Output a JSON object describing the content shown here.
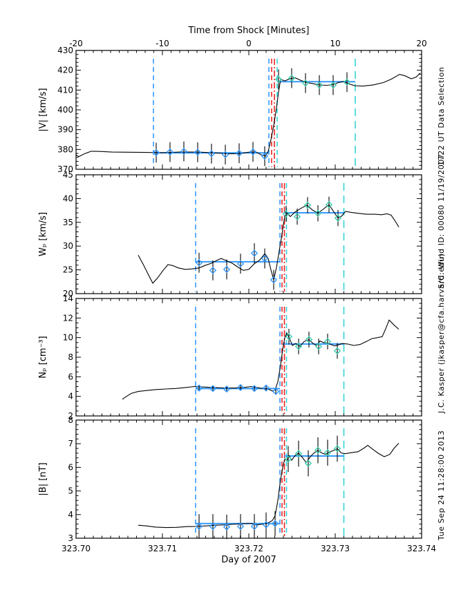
{
  "figure": {
    "bg": "#ffffff"
  },
  "colors": {
    "frame": "#000000",
    "data_line": "#000000",
    "blue": "#3399ff",
    "red": "#ee2222",
    "cyan": "#35d2d2",
    "teal_marker": "#3bcfb0",
    "fit_line": "#3399ff"
  },
  "top_axis": {
    "title": "Time from Shock [Minutes]",
    "tick_labels": [
      "-20",
      "-10",
      "0",
      "10",
      "20"
    ]
  },
  "x_axis": {
    "title": "Day of 2007",
    "tick_labels": [
      "323.70",
      "323.71",
      "323.72",
      "323.73",
      "323.74"
    ],
    "range": [
      323.7,
      323.74
    ]
  },
  "right_margin_texts": [
    "Tue Sep 24 11:28:00 2013",
    "J.C. Kasper (jkasper@cfa.harvard.edu)",
    "S/C: Wind ID: 00080 11/19/2007",
    "1722 UT Data Selection"
  ],
  "chart_data": [
    {
      "id": "vmag",
      "type": "line",
      "ylabel": "|V| [km/s]",
      "ylim": [
        370,
        430
      ],
      "ymajor": 10,
      "yminor": 2,
      "line_x": [
        323.7,
        323.70032,
        323.70096,
        323.70176,
        323.7028,
        323.70416,
        323.706,
        323.708,
        323.71,
        323.712,
        323.714,
        323.716,
        323.7176,
        323.7188,
        323.72,
        323.7208,
        323.72144,
        323.72192,
        323.72224,
        323.72256,
        323.72288,
        323.7232,
        323.72344,
        323.72368,
        323.72416,
        323.7248,
        323.72536,
        323.726,
        323.72664,
        323.72736,
        323.72816,
        323.72896,
        323.72976,
        323.7304,
        323.73096,
        323.7316,
        323.73224,
        323.7332,
        323.7344,
        323.7356,
        323.73648,
        323.73744,
        323.73808,
        323.7388,
        323.73936,
        323.73984
      ],
      "line_y": [
        377.2,
        376.4,
        377.8,
        379.1,
        379.0,
        378.7,
        378.6,
        378.5,
        378.4,
        378.7,
        378.7,
        378.3,
        377.8,
        377.9,
        378.6,
        378.8,
        377.3,
        376.6,
        379.0,
        385.0,
        392.0,
        401.0,
        409.0,
        415.4,
        414.6,
        415.8,
        416.2,
        414.9,
        413.8,
        413.3,
        412.6,
        412.4,
        412.7,
        413.8,
        414.3,
        413.1,
        412.2,
        412.0,
        412.6,
        413.8,
        415.5,
        417.9,
        417.2,
        415.7,
        416.5,
        418.6
      ],
      "upstream": {
        "x": [
          323.70928,
          323.71088,
          323.71248,
          323.71408,
          323.71568,
          323.71728,
          323.71888,
          323.72048,
          323.72184
        ],
        "y": [
          378.4,
          378.7,
          379.0,
          378.6,
          377.9,
          377.4,
          378.1,
          378.8,
          376.6
        ],
        "yerr": 5,
        "fit_y": 378.3,
        "fit_x": [
          323.70896,
          323.72232
        ]
      },
      "downstream": {
        "x": [
          323.72344,
          323.72496,
          323.72656,
          323.72816,
          323.72976,
          323.73136
        ],
        "y": [
          415.4,
          416.0,
          413.5,
          412.5,
          412.5,
          414.0
        ],
        "yerr": 5,
        "fit_y": 414.2,
        "fit_x": [
          323.72328,
          323.73232
        ]
      },
      "vlines": [
        [
          323.70896,
          "blue",
          "dash"
        ],
        [
          323.72232,
          "blue",
          "dash"
        ],
        [
          323.72264,
          "red",
          "dash"
        ],
        [
          323.72296,
          "red",
          "dashdot"
        ],
        [
          323.72328,
          "cyan",
          "dash"
        ],
        [
          323.73232,
          "cyan",
          "longdash"
        ]
      ]
    },
    {
      "id": "wp",
      "type": "line",
      "ylabel": "Wₚ [km/s]",
      "ylim": [
        20,
        45
      ],
      "ymajor": 5,
      "yminor": 1,
      "line_x": [
        323.7072,
        323.70776,
        323.70832,
        323.70888,
        323.70944,
        323.71008,
        323.71064,
        323.7112,
        323.71184,
        323.71264,
        323.71344,
        323.71424,
        323.71504,
        323.71568,
        323.71632,
        323.7168,
        323.71744,
        323.71808,
        323.71872,
        323.71936,
        323.72,
        323.72064,
        323.72128,
        323.72184,
        323.72224,
        323.72256,
        323.72288,
        323.7232,
        323.72352,
        323.72384,
        323.72416,
        323.72448,
        323.7248,
        323.72536,
        323.72608,
        323.72672,
        323.72736,
        323.728,
        323.72864,
        323.72928,
        323.72984,
        323.73032,
        323.73072,
        323.7312,
        323.73184,
        323.73264,
        323.7336,
        323.73456,
        323.73536,
        323.736,
        323.73648,
        323.73696,
        323.73736
      ],
      "line_y": [
        28.1,
        26.2,
        24.2,
        22.2,
        23.3,
        24.9,
        26.1,
        25.9,
        25.4,
        25.1,
        25.2,
        25.4,
        26.0,
        26.4,
        27.0,
        27.4,
        26.9,
        26.4,
        25.6,
        24.9,
        25.1,
        26.3,
        27.1,
        28.4,
        27.4,
        25.0,
        22.9,
        25.5,
        29.0,
        32.5,
        36.3,
        36.9,
        36.2,
        37.2,
        38.0,
        38.6,
        37.6,
        36.9,
        37.8,
        38.7,
        37.2,
        35.9,
        36.3,
        37.3,
        37.1,
        36.9,
        36.7,
        36.7,
        36.6,
        36.8,
        36.5,
        35.2,
        34.0
      ],
      "upstream": {
        "x": [
          323.71424,
          323.71584,
          323.71744,
          323.71904,
          323.72064,
          323.72184,
          323.72288
        ],
        "y": [
          26.5,
          24.9,
          25.1,
          26.3,
          28.5,
          27.4,
          22.9
        ],
        "yerr": 2.1,
        "fit_y": 26.7,
        "fit_x": [
          323.71384,
          323.7236
        ]
      },
      "downstream": {
        "x": [
          323.72432,
          323.7256,
          323.7268,
          323.728,
          323.72928,
          323.73032
        ],
        "y": [
          36.8,
          36.2,
          38.6,
          36.9,
          38.7,
          35.9
        ],
        "yerr": 1.7,
        "fit_y": 37.0,
        "fit_x": [
          323.724,
          323.731
        ]
      },
      "vlines": [
        [
          323.71384,
          "blue",
          "dash"
        ],
        [
          323.7236,
          "blue",
          "dash"
        ],
        [
          323.72384,
          "red",
          "dash"
        ],
        [
          323.72412,
          "red",
          "dashdot"
        ],
        [
          323.72436,
          "cyan",
          "dash"
        ],
        [
          323.731,
          "cyan",
          "longdash"
        ]
      ]
    },
    {
      "id": "np",
      "type": "line",
      "ylabel": "Nₚ [cm⁻³]",
      "ylim": [
        2,
        14
      ],
      "ymajor": 2,
      "yminor": 0.5,
      "line_x": [
        323.70536,
        323.70584,
        323.7064,
        323.7072,
        323.70816,
        323.70928,
        323.7104,
        323.71152,
        323.71264,
        323.71368,
        323.7148,
        323.716,
        323.7172,
        323.7184,
        323.71936,
        323.72024,
        323.72096,
        323.7216,
        323.72224,
        323.72272,
        323.72304,
        323.72336,
        323.72368,
        323.72392,
        323.72416,
        323.7244,
        323.72472,
        323.72504,
        323.72544,
        323.72592,
        323.7264,
        323.72696,
        323.72744,
        323.72784,
        323.72824,
        323.72864,
        323.72904,
        323.72952,
        323.72992,
        323.73032,
        323.7308,
        323.73144,
        323.73216,
        323.73288,
        323.7336,
        323.73424,
        323.73488,
        323.73544,
        323.73584,
        323.73624,
        323.7368,
        323.73736
      ],
      "line_y": [
        3.7,
        4.0,
        4.3,
        4.5,
        4.6,
        4.7,
        4.75,
        4.8,
        4.9,
        5.0,
        4.95,
        4.9,
        4.85,
        4.85,
        4.9,
        5.0,
        4.9,
        4.8,
        4.75,
        4.55,
        4.65,
        5.5,
        7.2,
        8.8,
        10.0,
        10.45,
        9.9,
        9.2,
        9.4,
        9.1,
        9.6,
        9.8,
        9.4,
        9.2,
        9.65,
        9.5,
        9.45,
        9.3,
        9.15,
        9.25,
        9.4,
        9.35,
        9.2,
        9.3,
        9.6,
        9.9,
        10.0,
        10.1,
        10.9,
        11.8,
        11.3,
        10.85
      ],
      "upstream": {
        "x": [
          323.71424,
          323.71584,
          323.71744,
          323.71904,
          323.72064,
          323.722,
          323.72312
        ],
        "y": [
          4.85,
          4.8,
          4.75,
          4.9,
          4.8,
          4.85,
          4.5
        ],
        "yerr": 0.3,
        "fit_y": 4.8,
        "fit_x": [
          323.71384,
          323.7236
        ]
      },
      "downstream": {
        "x": [
          323.72464,
          323.72576,
          323.72696,
          323.72808,
          323.72912,
          323.73024
        ],
        "y": [
          10.1,
          9.1,
          9.8,
          9.1,
          9.6,
          8.65
        ],
        "yerr": 0.8,
        "fit_y": 9.35,
        "fit_x": [
          323.72392,
          323.731
        ]
      },
      "vlines": [
        [
          323.71384,
          "blue",
          "dash"
        ],
        [
          323.7236,
          "blue",
          "dash"
        ],
        [
          323.72384,
          "red",
          "dash"
        ],
        [
          323.72412,
          "red",
          "dashdot"
        ],
        [
          323.72436,
          "cyan",
          "dash"
        ],
        [
          323.731,
          "cyan",
          "longdash"
        ]
      ]
    },
    {
      "id": "bmag",
      "type": "line",
      "ylabel": "|B| [nT]",
      "ylim": [
        3,
        8
      ],
      "ymajor": 1,
      "yminor": 0.2,
      "line_x": [
        323.7072,
        323.70816,
        323.7092,
        323.7104,
        323.7116,
        323.7128,
        323.71384,
        323.71504,
        323.71624,
        323.71744,
        323.71856,
        323.7196,
        323.72032,
        323.72096,
        323.7216,
        323.72224,
        323.72272,
        323.72304,
        323.72336,
        323.72368,
        323.72392,
        323.72416,
        323.7244,
        323.72464,
        323.72496,
        323.72536,
        323.72576,
        323.72624,
        323.72664,
        323.72712,
        323.72752,
        323.728,
        323.72848,
        323.72888,
        323.72936,
        323.72984,
        323.73024,
        323.73072,
        323.7312,
        323.73184,
        323.73264,
        323.73328,
        323.73376,
        323.7344,
        323.73504,
        323.73568,
        323.73632,
        323.7368,
        323.73736
      ],
      "line_y": [
        3.55,
        3.52,
        3.47,
        3.45,
        3.46,
        3.49,
        3.5,
        3.52,
        3.55,
        3.57,
        3.6,
        3.62,
        3.63,
        3.56,
        3.6,
        3.65,
        3.75,
        3.95,
        4.6,
        5.5,
        6.0,
        6.35,
        6.28,
        6.5,
        6.3,
        6.5,
        6.6,
        6.4,
        6.2,
        6.45,
        6.6,
        6.72,
        6.6,
        6.55,
        6.65,
        6.72,
        6.79,
        6.6,
        6.58,
        6.62,
        6.66,
        6.8,
        6.93,
        6.75,
        6.58,
        6.45,
        6.55,
        6.8,
        7.02
      ],
      "upstream": {
        "x": [
          323.71424,
          323.71584,
          323.71744,
          323.71904,
          323.72064,
          323.722,
          323.72304
        ],
        "y": [
          3.5,
          3.5,
          3.48,
          3.5,
          3.5,
          3.57,
          3.62
        ],
        "yerr": 0.52,
        "fit_y": 3.62,
        "fit_x": [
          323.71384,
          323.7236
        ]
      },
      "downstream": {
        "x": [
          323.72456,
          323.72576,
          323.72688,
          323.728,
          323.72912,
          323.73024
        ],
        "y": [
          6.35,
          6.58,
          6.17,
          6.72,
          6.62,
          6.79
        ],
        "yerr": 0.55,
        "fit_y": 6.48,
        "fit_x": [
          323.72408,
          323.731
        ]
      },
      "vlines": [
        [
          323.71384,
          "blue",
          "dash"
        ],
        [
          323.7236,
          "blue",
          "dash"
        ],
        [
          323.72384,
          "red",
          "dash"
        ],
        [
          323.72412,
          "red",
          "dashdot"
        ],
        [
          323.72436,
          "cyan",
          "dash"
        ],
        [
          323.731,
          "cyan",
          "longdash"
        ]
      ]
    }
  ]
}
